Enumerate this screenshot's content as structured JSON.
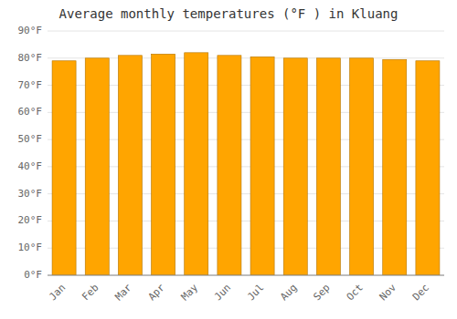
{
  "chart_data": {
    "type": "bar",
    "title": "Average monthly temperatures (°F ) in Kluang",
    "categories": [
      "Jan",
      "Feb",
      "Mar",
      "Apr",
      "May",
      "Jun",
      "Jul",
      "Aug",
      "Sep",
      "Oct",
      "Nov",
      "Dec"
    ],
    "values": [
      79,
      80,
      81,
      81.5,
      82,
      81,
      80.5,
      80,
      80,
      80,
      79.5,
      79
    ],
    "color": "#FFA500",
    "ylim": [
      0,
      90
    ],
    "yticks": [
      {
        "value": 0,
        "label": "0°F"
      },
      {
        "value": 10,
        "label": "10°F"
      },
      {
        "value": 20,
        "label": "20°F"
      },
      {
        "value": 30,
        "label": "30°F"
      },
      {
        "value": 40,
        "label": "40°F"
      },
      {
        "value": 50,
        "label": "50°F"
      },
      {
        "value": 60,
        "label": "60°F"
      },
      {
        "value": 70,
        "label": "70°F"
      },
      {
        "value": 80,
        "label": "80°F"
      },
      {
        "value": 90,
        "label": "90°F"
      }
    ],
    "grid": true
  }
}
